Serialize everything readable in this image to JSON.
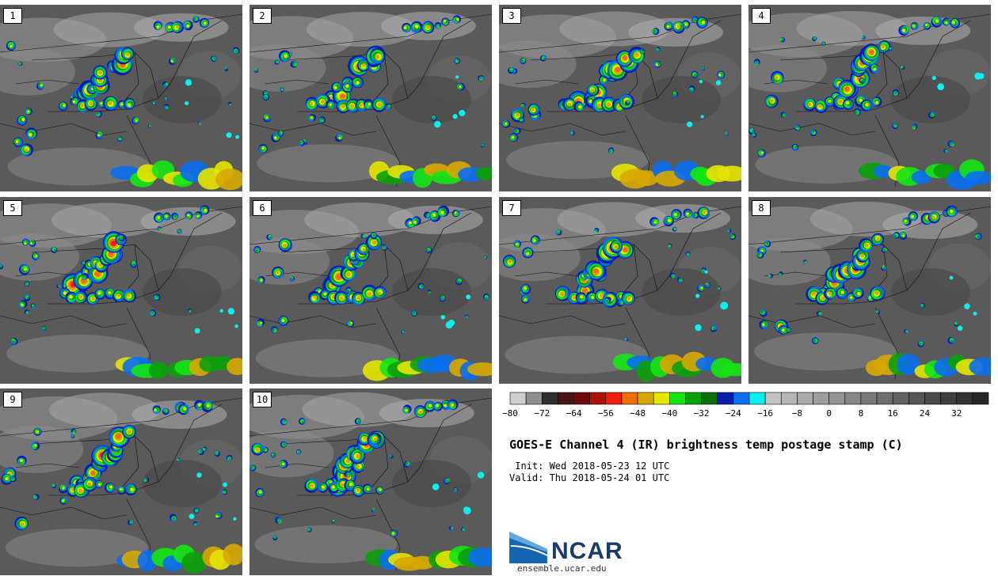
{
  "members": [
    {
      "label": "1"
    },
    {
      "label": "2"
    },
    {
      "label": "3"
    },
    {
      "label": "4"
    },
    {
      "label": "5"
    },
    {
      "label": "6"
    },
    {
      "label": "7"
    },
    {
      "label": "8"
    },
    {
      "label": "9"
    },
    {
      "label": "10"
    }
  ],
  "colorbar": {
    "colors": [
      "#cfcfcf",
      "#8f8f8f",
      "#2e2e2e",
      "#4a1414",
      "#6e0a0a",
      "#b0100a",
      "#f01e0a",
      "#f06e0a",
      "#d8a800",
      "#e6e600",
      "#14e614",
      "#0aa00a",
      "#0a700a",
      "#0a1eaa",
      "#0a6ef0",
      "#0af0f0",
      "#c2c2c2",
      "#b6b6b6",
      "#aaaaaa",
      "#9e9e9e",
      "#929292",
      "#868686",
      "#7a7a7a",
      "#6e6e6e",
      "#626262",
      "#565656",
      "#4a4a4a",
      "#3e3e3e",
      "#323232",
      "#262626"
    ],
    "ticks": [
      "-80",
      "-72",
      "-64",
      "-56",
      "-48",
      "-40",
      "-32",
      "-24",
      "-16",
      "-8",
      "0",
      "8",
      "16",
      "24",
      "32"
    ]
  },
  "title": "GOES-E Channel 4 (IR) brightness temp postage stamp (C)",
  "init": " Init: Wed 2018-05-23 12 UTC",
  "valid": "Valid: Thu 2018-05-24 01 UTC",
  "logo": {
    "text": "NCAR",
    "site": "ensemble.ucar.edu"
  }
}
